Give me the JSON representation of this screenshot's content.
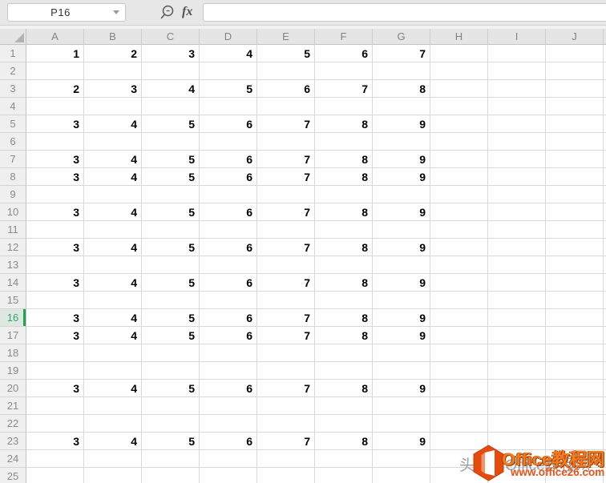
{
  "toolbar": {
    "name_box": "P16",
    "fx_label": "fx",
    "formula_value": ""
  },
  "grid": {
    "columns": [
      "A",
      "B",
      "C",
      "D",
      "E",
      "F",
      "G",
      "H",
      "I",
      "J",
      ""
    ],
    "selected_row": 16,
    "rows": [
      {
        "n": 1,
        "values": [
          1,
          2,
          3,
          4,
          5,
          6,
          7
        ]
      },
      {
        "n": 2,
        "values": []
      },
      {
        "n": 3,
        "values": [
          2,
          3,
          4,
          5,
          6,
          7,
          8
        ]
      },
      {
        "n": 4,
        "values": []
      },
      {
        "n": 5,
        "values": [
          3,
          4,
          5,
          6,
          7,
          8,
          9
        ]
      },
      {
        "n": 6,
        "values": []
      },
      {
        "n": 7,
        "values": [
          3,
          4,
          5,
          6,
          7,
          8,
          9
        ]
      },
      {
        "n": 8,
        "values": [
          3,
          4,
          5,
          6,
          7,
          8,
          9
        ]
      },
      {
        "n": 9,
        "values": []
      },
      {
        "n": 10,
        "values": [
          3,
          4,
          5,
          6,
          7,
          8,
          9
        ]
      },
      {
        "n": 11,
        "values": []
      },
      {
        "n": 12,
        "values": [
          3,
          4,
          5,
          6,
          7,
          8,
          9
        ]
      },
      {
        "n": 13,
        "values": []
      },
      {
        "n": 14,
        "values": [
          3,
          4,
          5,
          6,
          7,
          8,
          9
        ]
      },
      {
        "n": 15,
        "values": []
      },
      {
        "n": 16,
        "values": [
          3,
          4,
          5,
          6,
          7,
          8,
          9
        ]
      },
      {
        "n": 17,
        "values": [
          3,
          4,
          5,
          6,
          7,
          8,
          9
        ]
      },
      {
        "n": 18,
        "values": []
      },
      {
        "n": 19,
        "values": []
      },
      {
        "n": 20,
        "values": [
          3,
          4,
          5,
          6,
          7,
          8,
          9
        ]
      },
      {
        "n": 21,
        "values": []
      },
      {
        "n": 22,
        "values": []
      },
      {
        "n": 23,
        "values": [
          3,
          4,
          5,
          6,
          7,
          8,
          9
        ]
      },
      {
        "n": 24,
        "values": []
      },
      {
        "n": 25,
        "values": []
      }
    ]
  },
  "watermark": {
    "obscured_text": "头条@Office教程网",
    "brand_text": "Office教程网",
    "url_text": "www.office26.com"
  },
  "colors": {
    "selected_header_green": "#22a24b",
    "selected_header_text": "#35a36b",
    "watermark_orange": "#f57b1e",
    "watermark_url_orange": "#e8521a",
    "logo_orange": "#e64a0c"
  }
}
